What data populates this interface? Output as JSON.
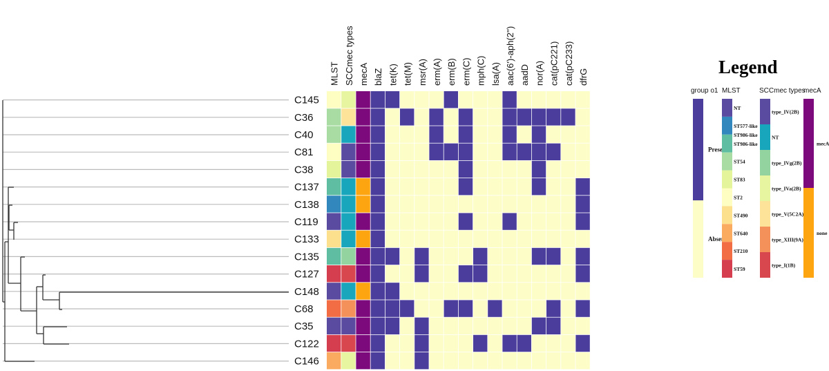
{
  "colors": {
    "present": "#4b3d9b",
    "absent": "#fdfdc8",
    "mecA": "#7c0a7c",
    "none": "#fca510",
    "tree_tip": "#bbbbbb",
    "tree_branch": "#333333"
  },
  "chart_data": {
    "type": "heatmap",
    "columns": [
      "MLST",
      "SCCmec types",
      "mecA",
      "blaZ",
      "tet(K)",
      "tet(M)",
      "msr(A)",
      "erm(A)",
      "erm(B)",
      "erm(C)",
      "mph(C)",
      "lsa(A)",
      "aac(6')-aph(2'')",
      "aadD",
      "nor(A)",
      "cat(pC221)",
      "cat(pC233)",
      "dfrG"
    ],
    "rows": [
      {
        "label": "C145",
        "mlst": "ST2",
        "sccmec": "type_IVa(2B)",
        "mecA": "mecA",
        "genes": [
          1,
          1,
          0,
          0,
          0,
          1,
          0,
          0,
          0,
          1,
          0,
          0,
          0,
          0,
          0
        ]
      },
      {
        "label": "C36",
        "mlst": "ST54",
        "sccmec": "type_V(5C2A)",
        "mecA": "mecA",
        "genes": [
          1,
          0,
          1,
          0,
          1,
          0,
          1,
          0,
          0,
          1,
          1,
          1,
          1,
          1,
          0
        ]
      },
      {
        "label": "C40",
        "mlst": "ST54",
        "sccmec": "NT",
        "mecA": "mecA",
        "genes": [
          1,
          0,
          0,
          0,
          1,
          0,
          1,
          0,
          0,
          1,
          0,
          1,
          0,
          0,
          0
        ]
      },
      {
        "label": "C81",
        "mlst": "ST2",
        "sccmec": "type_IV(2B)",
        "mecA": "mecA",
        "genes": [
          1,
          0,
          0,
          0,
          1,
          1,
          1,
          0,
          0,
          1,
          1,
          1,
          1,
          0,
          0
        ]
      },
      {
        "label": "C38",
        "mlst": "ST83",
        "sccmec": "type_IV(2B)",
        "mecA": "mecA",
        "genes": [
          1,
          0,
          0,
          0,
          0,
          0,
          1,
          0,
          0,
          0,
          0,
          1,
          0,
          0,
          0
        ]
      },
      {
        "label": "C137",
        "mlst": "ST986-like",
        "sccmec": "NT",
        "mecA": "none",
        "genes": [
          1,
          0,
          0,
          0,
          0,
          0,
          1,
          0,
          0,
          0,
          0,
          1,
          0,
          0,
          1
        ]
      },
      {
        "label": "C138",
        "mlst": "ST577-like",
        "sccmec": "NT",
        "mecA": "none",
        "genes": [
          1,
          0,
          0,
          0,
          0,
          0,
          0,
          0,
          0,
          0,
          0,
          0,
          0,
          0,
          1
        ]
      },
      {
        "label": "C119",
        "mlst": "NT",
        "sccmec": "NT",
        "mecA": "mecA",
        "genes": [
          1,
          0,
          0,
          0,
          0,
          0,
          1,
          0,
          0,
          1,
          0,
          0,
          0,
          0,
          1
        ]
      },
      {
        "label": "C133",
        "mlst": "ST490",
        "sccmec": "NT",
        "mecA": "none",
        "genes": [
          1,
          0,
          0,
          0,
          0,
          0,
          0,
          0,
          0,
          0,
          0,
          0,
          0,
          0,
          0
        ]
      },
      {
        "label": "C135",
        "mlst": "ST986-like",
        "sccmec": "type_IVg(2B)",
        "mecA": "mecA",
        "genes": [
          1,
          1,
          0,
          1,
          0,
          0,
          0,
          1,
          0,
          0,
          0,
          1,
          1,
          0,
          1
        ]
      },
      {
        "label": "C127",
        "mlst": "ST59",
        "sccmec": "type_I(1B)",
        "mecA": "mecA",
        "genes": [
          1,
          0,
          0,
          1,
          0,
          0,
          1,
          1,
          0,
          0,
          0,
          0,
          0,
          0,
          1
        ]
      },
      {
        "label": "C148",
        "mlst": "NT",
        "sccmec": "NT",
        "mecA": "none",
        "genes": [
          1,
          1,
          0,
          0,
          0,
          0,
          0,
          0,
          0,
          0,
          0,
          0,
          0,
          0,
          0
        ]
      },
      {
        "label": "C68",
        "mlst": "ST210",
        "sccmec": "type_XIII(9A)",
        "mecA": "mecA",
        "genes": [
          1,
          1,
          1,
          0,
          0,
          1,
          1,
          0,
          1,
          0,
          0,
          0,
          1,
          0,
          1
        ]
      },
      {
        "label": "C35",
        "mlst": "NT",
        "sccmec": "type_IV(2B)",
        "mecA": "mecA",
        "genes": [
          1,
          1,
          0,
          1,
          0,
          0,
          0,
          0,
          0,
          0,
          0,
          1,
          1,
          0,
          0
        ]
      },
      {
        "label": "C122",
        "mlst": "ST59",
        "sccmec": "type_I(1B)",
        "mecA": "mecA",
        "genes": [
          1,
          0,
          0,
          1,
          0,
          0,
          0,
          1,
          0,
          1,
          1,
          0,
          0,
          0,
          1
        ]
      },
      {
        "label": "C146",
        "mlst": "ST640",
        "sccmec": "type_IVa(2B)",
        "mecA": "mecA",
        "genes": [
          1,
          0,
          0,
          1,
          0,
          0,
          0,
          0,
          0,
          0,
          0,
          0,
          0,
          0,
          0
        ]
      }
    ]
  },
  "legend": {
    "title": "Legend",
    "group": {
      "header": "group o1",
      "items": [
        {
          "label": "Present",
          "color": "#4b3d9b"
        },
        {
          "label": "Absent",
          "color": "#fdfdc8"
        }
      ]
    },
    "mlst": {
      "header": "MLST",
      "extra_label": "ST986-like",
      "items": [
        {
          "label": "NT",
          "color": "#5a4aa0"
        },
        {
          "label": "ST577-like",
          "color": "#3288bd"
        },
        {
          "label": "ST986-like",
          "color": "#5fbea2"
        },
        {
          "label": "ST54",
          "color": "#a8dca3"
        },
        {
          "label": "ST83",
          "color": "#e4f49a"
        },
        {
          "label": "ST2",
          "color": "#fefdc2"
        },
        {
          "label": "ST490",
          "color": "#fde08d"
        },
        {
          "label": "ST640",
          "color": "#fbab60"
        },
        {
          "label": "ST210",
          "color": "#f26c44"
        },
        {
          "label": "ST59",
          "color": "#d53e4f"
        }
      ]
    },
    "sccmec": {
      "header": "SCCmec types",
      "items": [
        {
          "label": "type_IV(2B)",
          "color": "#5a4aa0"
        },
        {
          "label": "NT",
          "color": "#18a6bc"
        },
        {
          "label": "type_IVg(2B)",
          "color": "#93d3a0"
        },
        {
          "label": "type_IVa(2B)",
          "color": "#e8f5a0"
        },
        {
          "label": "type_V(5C2A)",
          "color": "#fde39a"
        },
        {
          "label": "type_XIII(9A)",
          "color": "#f4915a"
        },
        {
          "label": "type_I(1B)",
          "color": "#d7474d"
        }
      ]
    },
    "meca": {
      "header": "mecA",
      "items": [
        {
          "label": "mecA",
          "color": "#7c0a7c"
        },
        {
          "label": "none",
          "color": "#fca510"
        }
      ]
    }
  }
}
